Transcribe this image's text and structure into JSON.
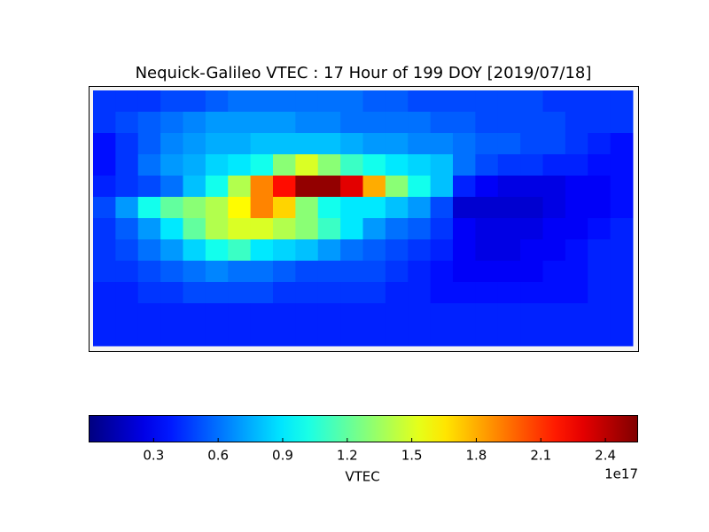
{
  "chart_data": {
    "type": "heatmap",
    "title": "Nequick-Galileo VTEC : 17 Hour of 199 DOY [2019/07/18]",
    "values": [
      [
        0.45,
        0.45,
        0.45,
        0.5,
        0.5,
        0.55,
        0.6,
        0.6,
        0.6,
        0.6,
        0.6,
        0.6,
        0.55,
        0.55,
        0.5,
        0.5,
        0.5,
        0.5,
        0.5,
        0.5,
        0.45,
        0.45,
        0.45,
        0.45
      ],
      [
        0.45,
        0.5,
        0.55,
        0.6,
        0.65,
        0.7,
        0.7,
        0.7,
        0.7,
        0.65,
        0.65,
        0.6,
        0.6,
        0.6,
        0.6,
        0.55,
        0.55,
        0.5,
        0.5,
        0.5,
        0.5,
        0.45,
        0.45,
        0.45
      ],
      [
        0.35,
        0.45,
        0.55,
        0.65,
        0.7,
        0.75,
        0.75,
        0.8,
        0.8,
        0.8,
        0.8,
        0.75,
        0.7,
        0.7,
        0.65,
        0.65,
        0.6,
        0.55,
        0.55,
        0.5,
        0.5,
        0.45,
        0.4,
        0.35
      ],
      [
        0.35,
        0.45,
        0.6,
        0.7,
        0.75,
        0.85,
        0.9,
        1.0,
        1.3,
        1.5,
        1.3,
        1.1,
        1.0,
        0.9,
        0.85,
        0.8,
        0.6,
        0.5,
        0.45,
        0.45,
        0.4,
        0.4,
        0.35,
        0.35
      ],
      [
        0.4,
        0.45,
        0.5,
        0.6,
        0.8,
        1.0,
        1.4,
        1.9,
        2.2,
        2.5,
        2.5,
        2.3,
        1.8,
        1.3,
        1.0,
        0.8,
        0.4,
        0.3,
        0.25,
        0.25,
        0.25,
        0.3,
        0.3,
        0.35
      ],
      [
        0.5,
        0.7,
        1.0,
        1.2,
        1.3,
        1.4,
        1.6,
        1.9,
        1.7,
        1.3,
        1.0,
        0.9,
        0.9,
        0.8,
        0.7,
        0.5,
        0.2,
        0.2,
        0.2,
        0.2,
        0.25,
        0.3,
        0.3,
        0.35
      ],
      [
        0.45,
        0.55,
        0.7,
        0.9,
        1.2,
        1.4,
        1.5,
        1.5,
        1.4,
        1.3,
        1.1,
        0.9,
        0.7,
        0.6,
        0.55,
        0.45,
        0.3,
        0.25,
        0.25,
        0.25,
        0.3,
        0.3,
        0.35,
        0.4
      ],
      [
        0.45,
        0.5,
        0.6,
        0.7,
        0.85,
        1.0,
        1.1,
        0.9,
        0.85,
        0.8,
        0.7,
        0.6,
        0.55,
        0.5,
        0.45,
        0.4,
        0.3,
        0.25,
        0.25,
        0.3,
        0.3,
        0.35,
        0.4,
        0.4
      ],
      [
        0.45,
        0.45,
        0.5,
        0.55,
        0.6,
        0.65,
        0.6,
        0.6,
        0.55,
        0.5,
        0.5,
        0.5,
        0.5,
        0.45,
        0.4,
        0.35,
        0.3,
        0.3,
        0.3,
        0.3,
        0.35,
        0.35,
        0.4,
        0.4
      ],
      [
        0.4,
        0.4,
        0.45,
        0.45,
        0.5,
        0.5,
        0.5,
        0.5,
        0.45,
        0.45,
        0.45,
        0.45,
        0.45,
        0.4,
        0.4,
        0.35,
        0.35,
        0.35,
        0.35,
        0.35,
        0.35,
        0.35,
        0.4,
        0.4
      ],
      [
        0.4,
        0.4,
        0.4,
        0.4,
        0.4,
        0.4,
        0.4,
        0.4,
        0.4,
        0.4,
        0.4,
        0.4,
        0.4,
        0.4,
        0.4,
        0.4,
        0.4,
        0.4,
        0.4,
        0.4,
        0.4,
        0.4,
        0.4,
        0.4
      ],
      [
        0.4,
        0.4,
        0.4,
        0.4,
        0.4,
        0.4,
        0.4,
        0.4,
        0.4,
        0.4,
        0.4,
        0.4,
        0.4,
        0.4,
        0.4,
        0.4,
        0.4,
        0.4,
        0.4,
        0.4,
        0.4,
        0.4,
        0.4,
        0.4
      ]
    ],
    "colormap": "jet",
    "colorbar": {
      "label": "VTEC",
      "offset_label": "1e17",
      "lim": [
        0,
        2.55
      ],
      "ticks": [
        0.3,
        0.6,
        0.9,
        1.2,
        1.5,
        1.8,
        2.1,
        2.4
      ]
    }
  }
}
